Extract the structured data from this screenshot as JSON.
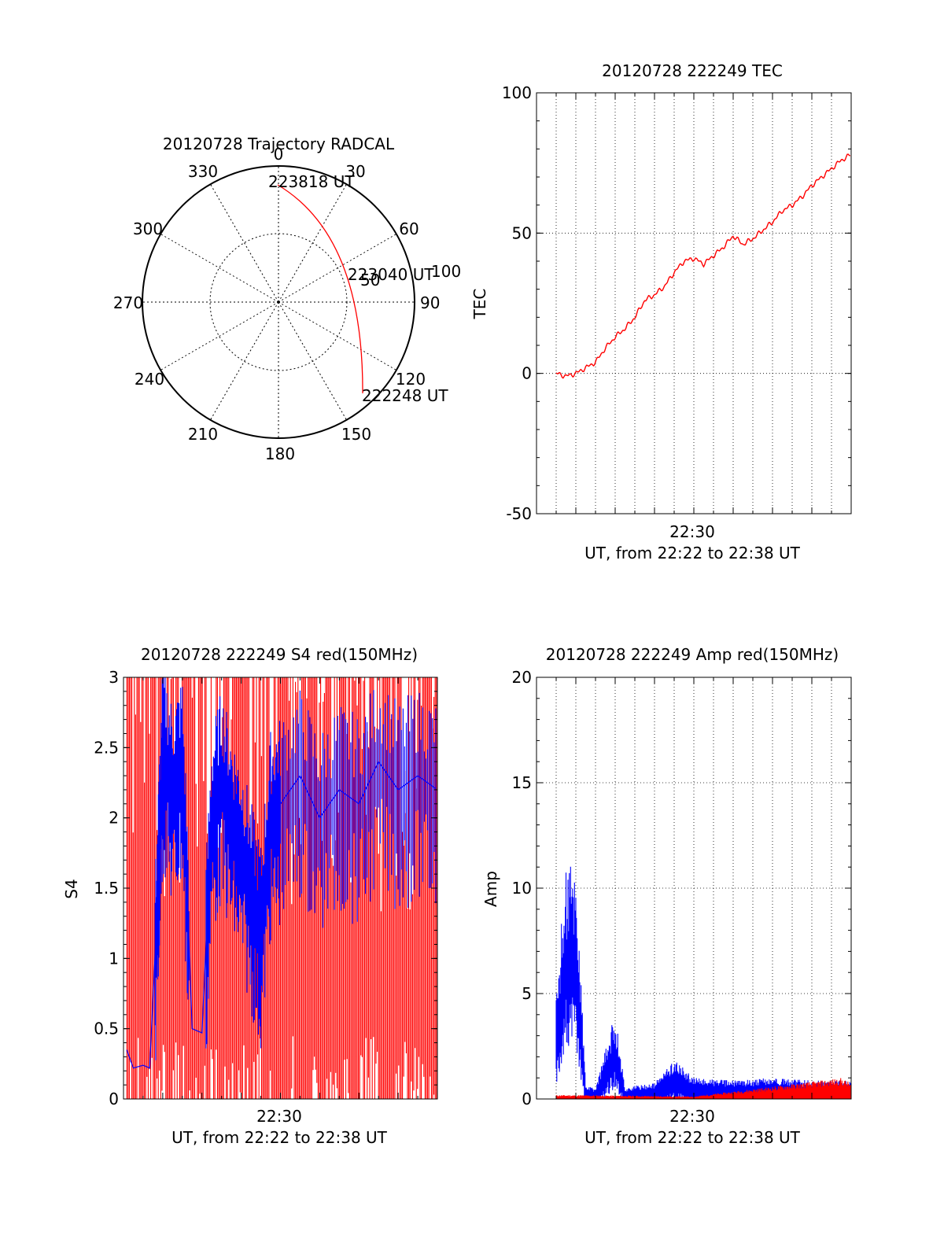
{
  "polar": {
    "title": "20120728 Trajectory RADCAL",
    "azimuth_labels": [
      "0",
      "30",
      "60",
      "90",
      "120",
      "150",
      "180",
      "210",
      "240",
      "270",
      "300",
      "330"
    ],
    "radial_labels": [
      "50",
      "100"
    ],
    "start_label": "222248 UT",
    "mid_label": "223040 UT",
    "end_label": "223818 UT",
    "colors": {
      "trajectory": "#ff0000"
    }
  },
  "chart_data": [
    {
      "type": "line",
      "title": "20120728 222249 TEC",
      "xlabel": "UT, from 22:22 to 22:38 UT",
      "ylabel": "TEC",
      "x_tick": "22:30",
      "xlim": [
        "22:22",
        "22:38"
      ],
      "ylim": [
        -50,
        100
      ],
      "y_ticks": [
        "100",
        "50",
        "0",
        "-50"
      ],
      "grid": true,
      "series": [
        {
          "color": "#ff0000",
          "x": [
            "22:23:00",
            "22:23:30",
            "22:24:00",
            "22:24:30",
            "22:25:00",
            "22:25:30",
            "22:26:00",
            "22:26:30",
            "22:27:00",
            "22:27:30",
            "22:28:00",
            "22:28:30",
            "22:29:00",
            "22:29:30",
            "22:30:00",
            "22:30:30",
            "22:31:00",
            "22:31:30",
            "22:32:00",
            "22:32:30",
            "22:33:00",
            "22:33:30",
            "22:34:00",
            "22:34:30",
            "22:35:00",
            "22:35:30",
            "22:36:00",
            "22:36:30",
            "22:37:00",
            "22:37:30",
            "22:38:00"
          ],
          "values": [
            0,
            -1,
            0,
            2,
            4,
            9,
            13,
            16,
            20,
            26,
            28,
            31,
            36,
            40,
            41,
            39,
            42,
            45,
            49,
            46,
            48,
            51,
            54,
            58,
            60,
            63,
            67,
            70,
            73,
            76,
            78
          ]
        }
      ]
    },
    {
      "type": "line",
      "title": "20120728 222249 S4 red(150MHz)",
      "xlabel": "UT, from 22:22 to 22:38 UT",
      "ylabel": "S4",
      "x_tick": "22:30",
      "xlim": [
        "22:22",
        "22:38"
      ],
      "ylim": [
        0,
        3
      ],
      "y_ticks": [
        "3",
        "2.5",
        "2",
        "1.5",
        "1",
        "0.5",
        "0"
      ],
      "series": [
        {
          "color": "#ff0000",
          "x": [
            "22:22:10",
            "22:38:00"
          ],
          "values": [
            0,
            3
          ],
          "note_values": "dense oscillation between 0 and 3"
        },
        {
          "color": "#0000ff",
          "x": [
            "22:22:10",
            "22:22:30",
            "22:23:00",
            "22:23:20",
            "22:23:40",
            "22:24:00",
            "22:24:30",
            "22:25:00",
            "22:25:30",
            "22:26:00",
            "22:26:30",
            "22:27:00",
            "22:27:30",
            "22:28:00",
            "22:28:30",
            "22:29:00",
            "22:29:30",
            "22:30:00",
            "22:31:00",
            "22:32:00",
            "22:33:00",
            "22:34:00",
            "22:35:00",
            "22:36:00",
            "22:37:00",
            "22:38:00"
          ],
          "values": [
            0.35,
            0.22,
            0.24,
            0.22,
            1.2,
            2.5,
            2.2,
            2.4,
            0.5,
            0.47,
            2.0,
            2.3,
            2.0,
            1.8,
            1.5,
            1.2,
            2.0,
            2.1,
            2.3,
            2.0,
            2.2,
            2.1,
            2.4,
            2.2,
            2.3,
            2.2
          ]
        }
      ]
    },
    {
      "type": "line",
      "title": "20120728 222249 Amp red(150MHz)",
      "xlabel": "UT, from 22:22 to 22:38 UT",
      "ylabel": "Amp",
      "x_tick": "22:30",
      "xlim": [
        "22:22",
        "22:38"
      ],
      "ylim": [
        0,
        20
      ],
      "y_ticks": [
        "20",
        "15",
        "10",
        "5",
        "0"
      ],
      "grid": true,
      "series": [
        {
          "color": "#0000ff",
          "x": [
            "22:23:00",
            "22:23:30",
            "22:24:00",
            "22:24:30",
            "22:25:00",
            "22:26:00",
            "22:26:30",
            "22:27:00",
            "22:28:00",
            "22:29:00",
            "22:30:00",
            "22:32:00",
            "22:34:00",
            "22:36:00",
            "22:38:00"
          ],
          "values": [
            4,
            9,
            9,
            0.5,
            0.4,
            3.3,
            0.4,
            0.5,
            0.6,
            1.5,
            0.8,
            0.7,
            0.8,
            0.7,
            0.7
          ]
        },
        {
          "color": "#ff0000",
          "x": [
            "22:23:00",
            "22:24:00",
            "22:30:00",
            "22:37:30",
            "22:38:00"
          ],
          "values": [
            0.15,
            0.15,
            0.1,
            0.8,
            0.6
          ]
        }
      ]
    }
  ]
}
